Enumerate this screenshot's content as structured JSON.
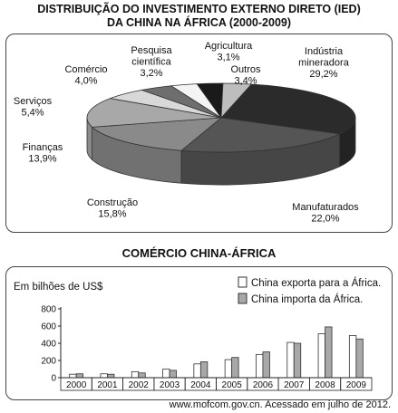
{
  "chart_data": [
    {
      "type": "pie",
      "title": "DISTRIBUIÇÃO DO INVESTIMENTO EXTERNO DIRETO (IED) DA CHINA NA ÁFRICA (2000-2009)",
      "title_lines": [
        "DISTRIBUIÇÃO DO INVESTIMENTO EXTERNO DIRETO (IED)",
        "DA CHINA NA ÁFRICA (2000-2009)"
      ],
      "slices": [
        {
          "label": "Indústria mineradora",
          "label_lines": [
            "Indústria",
            "mineradora"
          ],
          "value": 29.2,
          "value_label": "29,2%",
          "color": "#2b2b2b"
        },
        {
          "label": "Manufaturados",
          "label_lines": [
            "Manufaturados"
          ],
          "value": 22.0,
          "value_label": "22,0%",
          "color": "#555555"
        },
        {
          "label": "Construção",
          "label_lines": [
            "Construção"
          ],
          "value": 15.8,
          "value_label": "15,8%",
          "color": "#8a8a8a"
        },
        {
          "label": "Finanças",
          "label_lines": [
            "Finanças"
          ],
          "value": 13.9,
          "value_label": "13,9%",
          "color": "#a8a8a8"
        },
        {
          "label": "Serviços",
          "label_lines": [
            "Serviços"
          ],
          "value": 5.4,
          "value_label": "5,4%",
          "color": "#d8d8d8"
        },
        {
          "label": "Comércio",
          "label_lines": [
            "Comércio"
          ],
          "value": 4.0,
          "value_label": "4,0%",
          "color": "#6e6e6e"
        },
        {
          "label": "Pesquisa científica",
          "label_lines": [
            "Pesquisa",
            "científica"
          ],
          "value": 3.2,
          "value_label": "3,2%",
          "color": "#f4f4f4"
        },
        {
          "label": "Agricultura",
          "label_lines": [
            "Agricultura"
          ],
          "value": 3.1,
          "value_label": "3,1%",
          "color": "#1a1a1a"
        },
        {
          "label": "Outros",
          "label_lines": [
            "Outros"
          ],
          "value": 3.4,
          "value_label": "3,4%",
          "color": "#bdbdbd"
        }
      ]
    },
    {
      "type": "bar",
      "title": "COMÉRCIO CHINA-ÁFRICA",
      "ylabel": "Em bilhões de US$",
      "ylim": [
        0,
        800
      ],
      "yticks": [
        0,
        200,
        400,
        600,
        800
      ],
      "categories": [
        "2000",
        "2001",
        "2002",
        "2003",
        "2004",
        "2005",
        "2006",
        "2007",
        "2008",
        "2009"
      ],
      "series": [
        {
          "name": "China exporta para a África.",
          "color": "#ffffff",
          "values": [
            40,
            45,
            70,
            100,
            160,
            210,
            270,
            410,
            510,
            490
          ]
        },
        {
          "name": "China importa da África.",
          "color": "#a8a8a8",
          "values": [
            45,
            40,
            55,
            85,
            185,
            235,
            300,
            400,
            590,
            450
          ]
        }
      ],
      "legend": "top-right",
      "grid": false
    }
  ],
  "source": "www.mofcom.gov.cn. Acessado em julho de 2012."
}
